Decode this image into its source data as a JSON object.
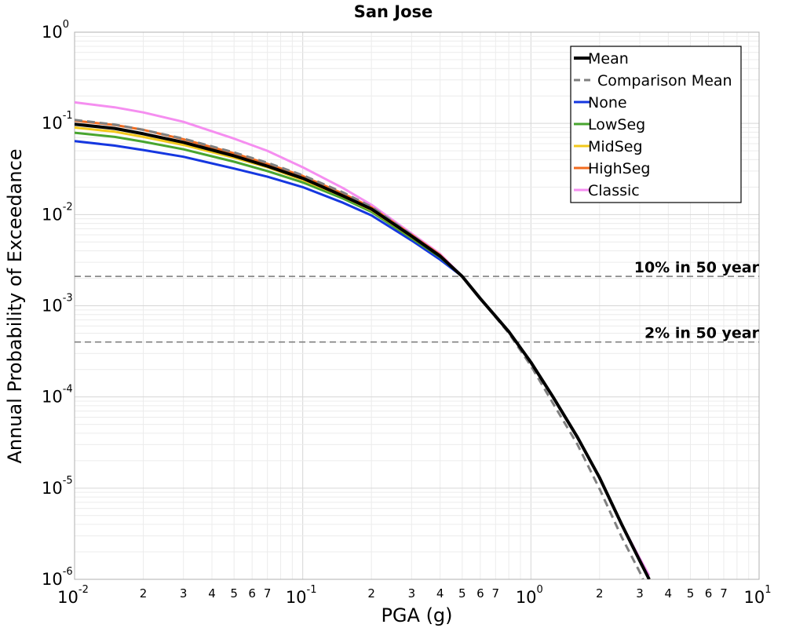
{
  "chart_data": {
    "type": "line",
    "title": "San Jose",
    "xlabel": "PGA (g)",
    "ylabel": "Annual Probability of Exceedance",
    "x_scale": "log",
    "y_scale": "log",
    "xlim": [
      0.01,
      10
    ],
    "ylim": [
      1e-06,
      1
    ],
    "grid": true,
    "legend_position": "top-right",
    "x_major_ticks": [
      {
        "value": 0.01,
        "base": "10",
        "exp": "-2"
      },
      {
        "value": 0.1,
        "base": "10",
        "exp": "-1"
      },
      {
        "value": 1,
        "base": "10",
        "exp": "0"
      },
      {
        "value": 10,
        "base": "10",
        "exp": "1"
      }
    ],
    "x_minor_labels": [
      "2",
      "3",
      "4",
      "5",
      "6",
      "7"
    ],
    "y_major_ticks": [
      {
        "value": 1,
        "base": "10",
        "exp": "0"
      },
      {
        "value": 0.1,
        "base": "10",
        "exp": "-1"
      },
      {
        "value": 0.01,
        "base": "10",
        "exp": "-2"
      },
      {
        "value": 0.001,
        "base": "10",
        "exp": "-3"
      },
      {
        "value": 0.0001,
        "base": "10",
        "exp": "-4"
      },
      {
        "value": 1e-05,
        "base": "10",
        "exp": "-5"
      },
      {
        "value": 1e-06,
        "base": "10",
        "exp": "-6"
      }
    ],
    "reference_lines": [
      {
        "label": "10% in 50 year",
        "y": 0.0021,
        "color": "#808080"
      },
      {
        "label": "2% in 50 year",
        "y": 0.0004,
        "color": "#808080"
      }
    ],
    "x": [
      0.01,
      0.015,
      0.02,
      0.03,
      0.05,
      0.07,
      0.1,
      0.15,
      0.2,
      0.3,
      0.4,
      0.5,
      0.6,
      0.8,
      1.0,
      1.25,
      1.6,
      2.0,
      2.5,
      3.0,
      3.3
    ],
    "series": [
      {
        "name": "Mean",
        "color": "#000000",
        "dash": "solid",
        "width": 4,
        "values": [
          0.098,
          0.088,
          0.077,
          0.062,
          0.044,
          0.034,
          0.025,
          0.016,
          0.0115,
          0.0058,
          0.0035,
          0.0021,
          0.0012,
          0.00052,
          0.00024,
          0.0001,
          3.6e-05,
          1.3e-05,
          4e-06,
          1.6e-06,
          1e-06
        ]
      },
      {
        "name": "Comparison Mean",
        "color": "#808080",
        "dash": "dashed",
        "width": 3,
        "values": [
          0.109,
          0.097,
          0.085,
          0.068,
          0.048,
          0.037,
          0.027,
          0.0175,
          0.0122,
          0.006,
          0.0035,
          0.0021,
          0.0012,
          0.0005,
          0.00022,
          8.5e-05,
          3e-05,
          9.8e-06,
          2.9e-06,
          1.2e-06,
          7e-07
        ]
      },
      {
        "name": "None",
        "color": "#1537e0",
        "dash": "solid",
        "width": 3,
        "values": [
          0.064,
          0.057,
          0.051,
          0.043,
          0.032,
          0.026,
          0.02,
          0.0135,
          0.0098,
          0.0052,
          0.0032,
          0.0021,
          0.0012,
          0.00052,
          0.00024,
          0.0001,
          3.6e-05,
          1.3e-05,
          4e-06,
          1.6e-06,
          1e-06
        ]
      },
      {
        "name": "LowSeg",
        "color": "#48a52f",
        "dash": "solid",
        "width": 3,
        "values": [
          0.079,
          0.071,
          0.063,
          0.052,
          0.038,
          0.03,
          0.0225,
          0.015,
          0.0107,
          0.0055,
          0.0034,
          0.0021,
          0.0012,
          0.00052,
          0.00024,
          0.0001,
          3.6e-05,
          1.3e-05,
          4e-06,
          1.6e-06,
          1e-06
        ]
      },
      {
        "name": "MidSeg",
        "color": "#f2c81c",
        "dash": "solid",
        "width": 3,
        "values": [
          0.09,
          0.081,
          0.071,
          0.058,
          0.042,
          0.033,
          0.024,
          0.0158,
          0.0112,
          0.0057,
          0.0035,
          0.0021,
          0.0012,
          0.00052,
          0.00024,
          0.0001,
          3.6e-05,
          1.3e-05,
          4e-06,
          1.6e-06,
          1e-06
        ]
      },
      {
        "name": "HighSeg",
        "color": "#f26b1f",
        "dash": "solid",
        "width": 3,
        "values": [
          0.107,
          0.096,
          0.085,
          0.067,
          0.047,
          0.036,
          0.0265,
          0.017,
          0.012,
          0.006,
          0.0036,
          0.0021,
          0.0012,
          0.00052,
          0.00024,
          0.0001,
          3.6e-05,
          1.3e-05,
          4e-06,
          1.6e-06,
          1e-06
        ]
      },
      {
        "name": "Classic",
        "color": "#f58ef0",
        "dash": "solid",
        "width": 3,
        "values": [
          0.17,
          0.15,
          0.132,
          0.104,
          0.068,
          0.05,
          0.033,
          0.0195,
          0.0128,
          0.0062,
          0.0037,
          0.0021,
          0.0012,
          0.00052,
          0.00024,
          0.0001,
          3.6e-05,
          1.3e-05,
          4e-06,
          1.7e-06,
          1.1e-06
        ]
      }
    ]
  }
}
